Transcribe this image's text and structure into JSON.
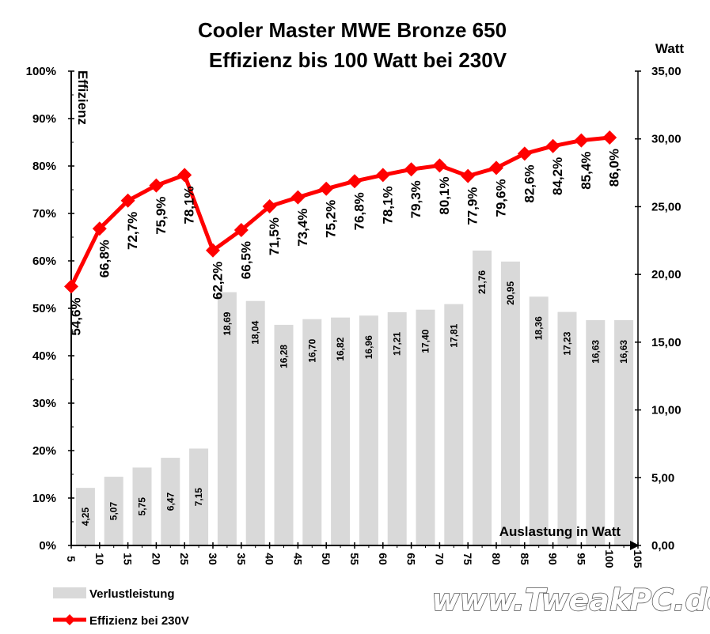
{
  "chart_data": {
    "type": "bar+line",
    "title": "Cooler Master MWE Bronze 650",
    "subtitle": "Effizienz bis 100 Watt bei 230V",
    "y_left_label": "Effizienz",
    "y_right_label": "Watt",
    "xlabel": "Auslastung in Watt",
    "y_left_ticks": [
      "0%",
      "10%",
      "20%",
      "30%",
      "40%",
      "50%",
      "60%",
      "70%",
      "80%",
      "90%",
      "100%"
    ],
    "y_left_lim": [
      0,
      100
    ],
    "y_right_ticks": [
      "0,00",
      "5,00",
      "10,00",
      "15,00",
      "20,00",
      "25,00",
      "30,00",
      "35,00"
    ],
    "y_right_lim": [
      0,
      35
    ],
    "x_ticks": [
      "5",
      "10",
      "15",
      "20",
      "25",
      "30",
      "35",
      "40",
      "45",
      "50",
      "55",
      "60",
      "65",
      "70",
      "75",
      "80",
      "85",
      "90",
      "95",
      "100",
      "105"
    ],
    "x_lim": [
      5,
      105
    ],
    "bars": {
      "name": "Verlustleistung",
      "color": "#d9d9d9",
      "x": [
        10,
        15,
        20,
        25,
        30,
        35,
        40,
        45,
        50,
        55,
        60,
        65,
        70,
        75,
        80,
        85,
        90,
        95,
        100,
        105
      ],
      "values": [
        4.25,
        5.07,
        5.75,
        6.47,
        7.15,
        18.69,
        18.04,
        16.28,
        16.7,
        16.82,
        16.96,
        17.21,
        17.4,
        17.81,
        21.76,
        20.95,
        18.36,
        17.23,
        16.63,
        16.63
      ],
      "labels": [
        "4,25",
        "5,07",
        "5,75",
        "6,47",
        "7,15",
        "18,69",
        "18,04",
        "16,28",
        "16,70",
        "16,82",
        "16,96",
        "17,21",
        "17,40",
        "17,81",
        "21,76",
        "20,95",
        "18,36",
        "17,23",
        "16,63",
        "16,63"
      ]
    },
    "line": {
      "name": "Effizienz bei 230V",
      "color": "#ff0000",
      "x": [
        5,
        10,
        15,
        20,
        25,
        30,
        35,
        40,
        45,
        50,
        55,
        60,
        65,
        70,
        75,
        80,
        85,
        90,
        95,
        100
      ],
      "values": [
        54.6,
        66.8,
        72.7,
        75.9,
        78.1,
        62.2,
        66.5,
        71.5,
        73.4,
        75.2,
        76.8,
        78.1,
        79.3,
        80.1,
        77.9,
        79.6,
        82.6,
        84.2,
        85.4,
        86.0
      ],
      "labels": [
        "54,6%",
        "66,8%",
        "72,7%",
        "75,9%",
        "78,1%",
        "62,2%",
        "66,5%",
        "71,5%",
        "73,4%",
        "75,2%",
        "76,8%",
        "78,1%",
        "79,3%",
        "80,1%",
        "77,9%",
        "79,6%",
        "82,6%",
        "84,2%",
        "85,4%",
        "86,0%"
      ]
    },
    "legend_position": "bottom-left",
    "grid": false
  },
  "watermark": "www.TweakPC.de"
}
